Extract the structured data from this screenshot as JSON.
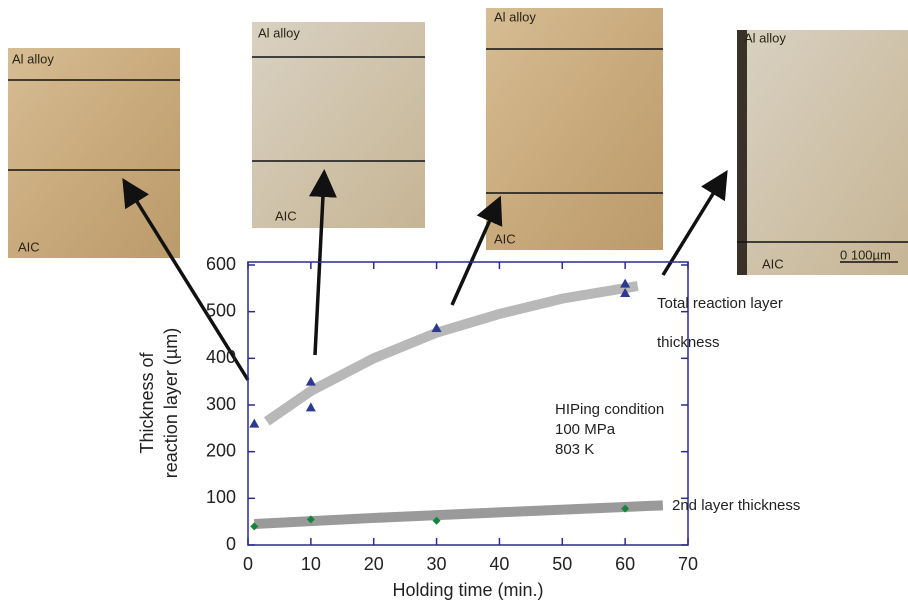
{
  "chart_data": {
    "type": "scatter",
    "xlabel": "Holding time (min.)",
    "ylabel": [
      "Thickness of",
      "reaction layer (µm)"
    ],
    "xlim": [
      0,
      70
    ],
    "ylim": [
      0,
      600
    ],
    "xticks": [
      0,
      10,
      20,
      30,
      40,
      50,
      60,
      70
    ],
    "yticks": [
      0,
      100,
      200,
      300,
      400,
      500,
      600
    ],
    "series": [
      {
        "kind": "points",
        "marker": "triangle",
        "color": "#2b3990",
        "x": [
          1,
          10,
          10,
          30,
          60,
          60
        ],
        "values": [
          260,
          350,
          295,
          465,
          560,
          540
        ]
      },
      {
        "kind": "points",
        "marker": "diamond",
        "color": "#14853b",
        "x": [
          1,
          10,
          30,
          60
        ],
        "values": [
          40,
          55,
          52,
          78
        ]
      },
      {
        "kind": "line",
        "color": "#b8b8b8",
        "x": [
          3,
          10,
          20,
          30,
          40,
          50,
          62
        ],
        "values": [
          265,
          330,
          400,
          455,
          495,
          528,
          555
        ]
      },
      {
        "kind": "line",
        "color": "#9a9a9a",
        "x": [
          1,
          20,
          40,
          66
        ],
        "values": [
          45,
          58,
          70,
          85
        ]
      }
    ],
    "annotations": [
      "Total reaction layer",
      "thickness",
      "2nd layer thickness",
      "HIPing condition",
      "100 MPa",
      "803 K"
    ]
  },
  "micrographs": [
    {
      "labels": [
        "Al alloy",
        "AIC"
      ]
    },
    {
      "labels": [
        "Al alloy",
        "AIC"
      ]
    },
    {
      "labels": [
        "Al alloy",
        "AIC"
      ]
    },
    {
      "labels": [
        "Al alloy",
        "AIC",
        "0   100µm"
      ]
    }
  ]
}
